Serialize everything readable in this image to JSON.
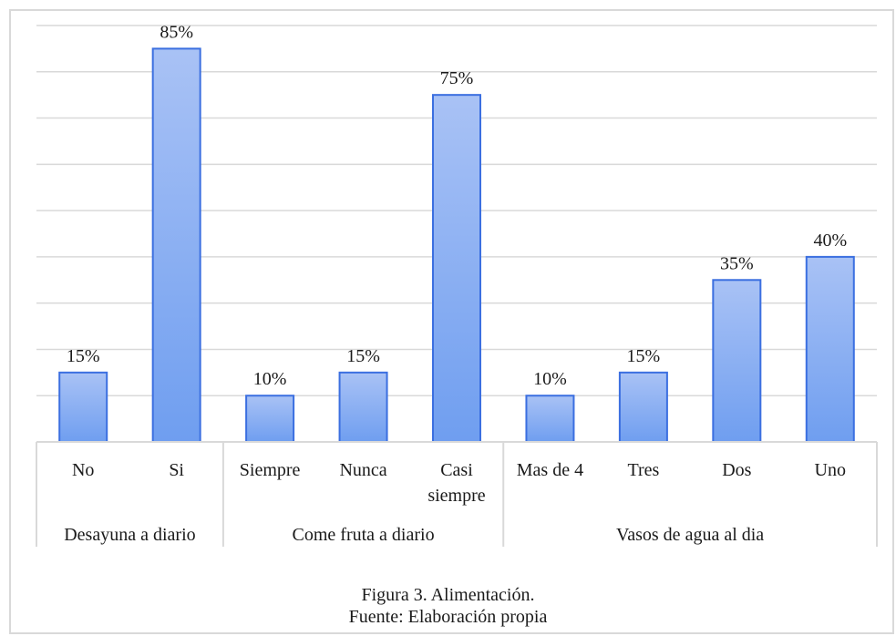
{
  "chart_data": {
    "type": "bar",
    "groups": [
      {
        "name": "Desayuna a diario",
        "categories": [
          "No",
          "Si"
        ],
        "values": [
          15,
          85
        ]
      },
      {
        "name": "Come fruta a diario",
        "categories": [
          "Siempre",
          "Nunca",
          "Casi siempre"
        ],
        "values": [
          10,
          15,
          75
        ]
      },
      {
        "name": "Vasos de agua al dia",
        "categories": [
          "Mas de 4",
          "Tres",
          "Dos",
          "Uno"
        ],
        "values": [
          10,
          15,
          35,
          40
        ]
      }
    ],
    "value_labels": [
      "15%",
      "85%",
      "10%",
      "15%",
      "75%",
      "10%",
      "15%",
      "35%",
      "40%"
    ],
    "ylim": [
      0,
      90
    ],
    "grid": true,
    "colors": {
      "bar_top": "#a9c2f5",
      "bar_bottom": "#6f9ef0",
      "bar_stroke": "#3b6fe0",
      "grid": "#d9d9d9"
    }
  },
  "caption": {
    "figure": "Figura  3. Alimentación.",
    "source": "Fuente:  Elaboración  propia"
  }
}
